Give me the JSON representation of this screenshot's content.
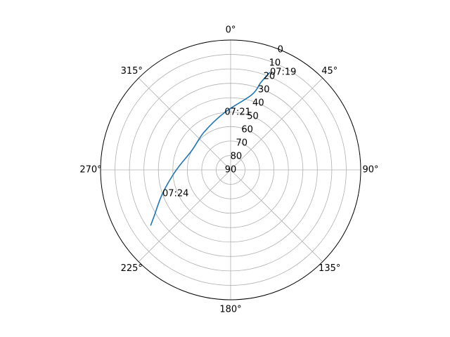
{
  "chart_data": {
    "type": "line",
    "projection": "polar",
    "theta_direction": "clockwise",
    "theta_zero": "top",
    "radial_axis": {
      "label": "",
      "range": [
        90,
        0
      ],
      "ticks": [
        0,
        10,
        20,
        30,
        40,
        50,
        60,
        70,
        80,
        90
      ],
      "tick_labels": [
        "0",
        "10",
        "20",
        "30",
        "40",
        "50",
        "60",
        "70",
        "80",
        "90"
      ]
    },
    "angular_axis": {
      "ticks": [
        0,
        45,
        90,
        135,
        180,
        225,
        270,
        315
      ],
      "tick_labels": [
        "0°",
        "45°",
        "90°",
        "135°",
        "180°",
        "225°",
        "270°",
        "315°"
      ]
    },
    "grid": true,
    "series": [
      {
        "color": "#1f77b4",
        "points": [
          {
            "azimuth": 21.9,
            "elevation": 17.0
          },
          {
            "azimuth": 19.0,
            "elevation": 26.0
          },
          {
            "azimuth": 15.6,
            "elevation": 36.0
          },
          {
            "azimuth": 354.0,
            "elevation": 50.0
          },
          {
            "azimuth": 325.0,
            "elevation": 58.0
          },
          {
            "azimuth": 297.0,
            "elevation": 60.0
          },
          {
            "azimuth": 269.0,
            "elevation": 52.0
          },
          {
            "azimuth": 250.7,
            "elevation": 40.0
          },
          {
            "azimuth": 238.7,
            "elevation": 28.0
          },
          {
            "azimuth": 235.1,
            "elevation": 22.5
          }
        ]
      }
    ],
    "annotations": [
      {
        "text": "07:19",
        "azimuth": 21.9,
        "elevation": 17.0
      },
      {
        "text": "07:21",
        "azimuth": 354.0,
        "elevation": 50.0
      },
      {
        "text": "07:24",
        "azimuth": 250.7,
        "elevation": 40.0
      }
    ]
  }
}
